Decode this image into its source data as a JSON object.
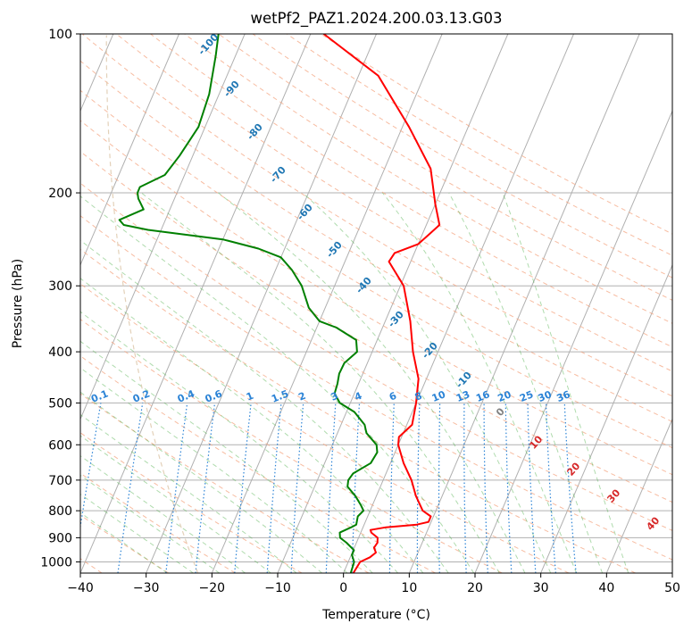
{
  "chart_data": {
    "type": "skew-t",
    "title": "wetPf2_PAZ1.2024.200.03.13.G03",
    "xlabel": "Temperature (°C)",
    "ylabel": "Pressure (hPa)",
    "xlim": [
      -40,
      50
    ],
    "ylim": [
      1050,
      100
    ],
    "y_scale": "log",
    "grid": true,
    "x_ticks": [
      "−40",
      "−30",
      "−20",
      "−10",
      "0",
      "10",
      "20",
      "30",
      "40",
      "50"
    ],
    "y_ticks": [
      "100",
      "200",
      "300",
      "400",
      "500",
      "600",
      "700",
      "800",
      "900",
      "1000"
    ],
    "series": [
      {
        "color": "#ff0000",
        "points": [
          [
            1050,
            1.5
          ],
          [
            1000,
            1.8
          ],
          [
            980,
            3.0
          ],
          [
            960,
            3.6
          ],
          [
            940,
            3.0
          ],
          [
            920,
            3.2
          ],
          [
            900,
            2.9
          ],
          [
            880,
            1.6
          ],
          [
            870,
            1.3
          ],
          [
            860,
            3.5
          ],
          [
            850,
            8.0
          ],
          [
            840,
            9.6
          ],
          [
            820,
            9.6
          ],
          [
            800,
            8.0
          ],
          [
            750,
            6.0
          ],
          [
            700,
            4.3
          ],
          [
            650,
            2.0
          ],
          [
            600,
            0.0
          ],
          [
            580,
            -0.4
          ],
          [
            550,
            0.8
          ],
          [
            500,
            0.0
          ],
          [
            450,
            -1.2
          ],
          [
            400,
            -3.8
          ],
          [
            350,
            -6.2
          ],
          [
            300,
            -9.5
          ],
          [
            270,
            -13.3
          ],
          [
            260,
            -13.0
          ],
          [
            250,
            -10.0
          ],
          [
            240,
            -9.0
          ],
          [
            230,
            -8.0
          ],
          [
            210,
            -10.0
          ],
          [
            180,
            -13.0
          ],
          [
            150,
            -19.0
          ],
          [
            120,
            -27.0
          ],
          [
            100,
            -38.0
          ]
        ]
      },
      {
        "color": "#008000",
        "points": [
          [
            1050,
            1.1
          ],
          [
            1000,
            0.9
          ],
          [
            970,
            0.1
          ],
          [
            950,
            0.1
          ],
          [
            920,
            -1.5
          ],
          [
            900,
            -2.8
          ],
          [
            880,
            -3.2
          ],
          [
            860,
            -1.8
          ],
          [
            850,
            -1.2
          ],
          [
            820,
            -1.5
          ],
          [
            800,
            -1.0
          ],
          [
            780,
            -1.8
          ],
          [
            750,
            -3.2
          ],
          [
            720,
            -5.0
          ],
          [
            700,
            -5.3
          ],
          [
            680,
            -5.0
          ],
          [
            650,
            -3.0
          ],
          [
            620,
            -2.7
          ],
          [
            600,
            -3.3
          ],
          [
            570,
            -5.6
          ],
          [
            550,
            -6.4
          ],
          [
            520,
            -8.8
          ],
          [
            500,
            -11.6
          ],
          [
            480,
            -13.0
          ],
          [
            460,
            -13.2
          ],
          [
            440,
            -13.6
          ],
          [
            420,
            -13.5
          ],
          [
            400,
            -12.3
          ],
          [
            380,
            -13.2
          ],
          [
            360,
            -17.0
          ],
          [
            350,
            -20.0
          ],
          [
            330,
            -22.5
          ],
          [
            300,
            -25.0
          ],
          [
            280,
            -27.5
          ],
          [
            265,
            -30.0
          ],
          [
            255,
            -34.0
          ],
          [
            245,
            -40.0
          ],
          [
            240,
            -46.0
          ],
          [
            235,
            -52.0
          ],
          [
            230,
            -56.0
          ],
          [
            225,
            -57.0
          ],
          [
            215,
            -54.0
          ],
          [
            205,
            -55.5
          ],
          [
            200,
            -56.0
          ],
          [
            195,
            -56.0
          ],
          [
            185,
            -53.0
          ],
          [
            170,
            -52.0
          ],
          [
            150,
            -51.0
          ],
          [
            130,
            -51.5
          ],
          [
            110,
            -53.0
          ],
          [
            100,
            -54.0
          ]
        ]
      }
    ],
    "mixing_ratio_labels": [
      "0.1",
      "0.2",
      "0.4",
      "0.6",
      "1",
      "1.5",
      "2",
      "3",
      "4",
      "6",
      "8",
      "10",
      "13",
      "16",
      "20",
      "25",
      "30",
      "36"
    ],
    "dry_adiabat_labels": [
      "-100",
      "-90",
      "-80",
      "-70",
      "-60",
      "-50",
      "-40",
      "-30",
      "-20",
      "-10"
    ],
    "moist_adiabat_labels": [
      "0",
      "10",
      "20",
      "30",
      "40"
    ]
  }
}
